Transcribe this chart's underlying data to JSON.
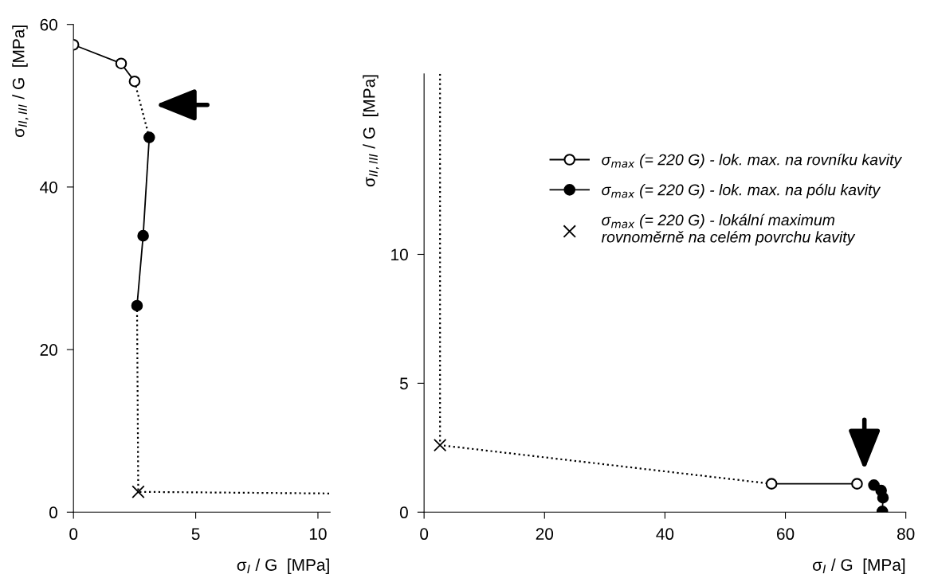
{
  "chart_data": [
    {
      "type": "line",
      "xlabel": "σ$_{I}$ / G  [MPa]",
      "ylabel": "σ$_{II,III}$ / G  [MPa]",
      "xlim": [
        0,
        10.5
      ],
      "ylim": [
        0,
        60
      ],
      "xticks": [
        0,
        5,
        10
      ],
      "yticks": [
        0,
        20,
        40,
        60
      ],
      "grid": false,
      "legend": false,
      "series": [
        {
          "type": "line",
          "line_style": "solid",
          "marker": "circle",
          "color": "#000000",
          "colors": [
            "#ffffff",
            "#ffffff",
            "#ffffff"
          ],
          "x": [
            0,
            1.95,
            2.5
          ],
          "values": [
            57.5,
            55.2,
            53.0
          ]
        },
        {
          "type": "line",
          "line_style": "solid",
          "marker": "circle",
          "color": "#000000",
          "x": [
            3.1,
            2.85,
            2.6
          ],
          "values": [
            46.1,
            34.0,
            25.4
          ]
        },
        {
          "type": "scatter",
          "marker": "cross",
          "color": "#000000",
          "x": [
            2.65
          ],
          "values": [
            2.5
          ]
        },
        {
          "type": "line",
          "line_style": "dotted",
          "marker": "none",
          "color": "#000000",
          "x": [
            2.5,
            3.1
          ],
          "values": [
            53.0,
            46.1
          ]
        },
        {
          "type": "line",
          "line_style": "dotted",
          "marker": "none",
          "color": "#000000",
          "x": [
            2.6,
            2.65,
            10.5
          ],
          "values": [
            25.4,
            2.5,
            2.3
          ]
        }
      ]
    },
    {
      "type": "line",
      "xlabel": "σ$_{I}$ / G  [MPa]",
      "ylabel": "σ$_{II,III}$ / G  [MPa]",
      "xlim": [
        0,
        80
      ],
      "ylim": [
        0,
        17
      ],
      "xticks": [
        0,
        20,
        40,
        60,
        80
      ],
      "yticks": [
        0,
        5,
        10
      ],
      "grid": false,
      "legend": "top right",
      "series": [
        {
          "type": "line",
          "name": "σ$_{max}$ (= 220 G) - lok. max. na rovníku kavity",
          "line_style": "solid",
          "marker": "circle",
          "color": "#000000",
          "colors": [
            "#ffffff",
            "#ffffff"
          ],
          "x": [
            57.7,
            71.9
          ],
          "values": [
            1.1,
            1.1
          ]
        },
        {
          "type": "line",
          "name": "σ$_{max}$ (= 220 G) - lok. max. na pólu kavity",
          "line_style": "solid",
          "marker": "circle",
          "color": "#000000",
          "x": [
            74.7,
            75.9,
            76.2,
            76.1
          ],
          "values": [
            1.05,
            0.84,
            0.56,
            0.03
          ]
        },
        {
          "type": "scatter",
          "name": "σ$_{max}$ (= 220 G) - lokální maximum\nrovnoměrně na celém povrchu kavity",
          "marker": "cross",
          "color": "#000000",
          "x": [
            2.65
          ],
          "values": [
            2.6
          ]
        },
        {
          "type": "line",
          "line_style": "dotted",
          "marker": "none",
          "color": "#000000",
          "x": [
            2.65,
            2.65,
            57.7
          ],
          "values": [
            17,
            2.6,
            1.1
          ]
        }
      ]
    }
  ]
}
